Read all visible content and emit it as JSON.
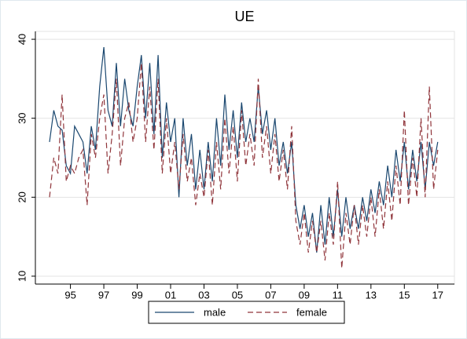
{
  "chart_data": {
    "type": "line",
    "title": "UE",
    "x": [
      1993.75,
      1994,
      1994.25,
      1994.5,
      1994.75,
      1995,
      1995.25,
      1995.5,
      1995.75,
      1996,
      1996.25,
      1996.5,
      1996.75,
      1997,
      1997.25,
      1997.5,
      1997.75,
      1998,
      1998.25,
      1998.5,
      1998.75,
      1999,
      1999.25,
      1999.5,
      1999.75,
      2000,
      2000.25,
      2000.5,
      2000.75,
      2001,
      2001.25,
      2001.5,
      2001.75,
      2002,
      2002.25,
      2002.5,
      2002.75,
      2003,
      2003.25,
      2003.5,
      2003.75,
      2004,
      2004.25,
      2004.5,
      2004.75,
      2005,
      2005.25,
      2005.5,
      2005.75,
      2006,
      2006.25,
      2006.5,
      2006.75,
      2007,
      2007.25,
      2007.5,
      2007.75,
      2008,
      2008.25,
      2008.5,
      2008.75,
      2009,
      2009.25,
      2009.5,
      2009.75,
      2010,
      2010.25,
      2010.5,
      2010.75,
      2011,
      2011.25,
      2011.5,
      2011.75,
      2012,
      2012.25,
      2012.5,
      2012.75,
      2013,
      2013.25,
      2013.5,
      2013.75,
      2014,
      2014.25,
      2014.5,
      2014.75,
      2015,
      2015.25,
      2015.5,
      2015.75,
      2016,
      2016.25,
      2016.5,
      2016.75,
      2017
    ],
    "series": [
      {
        "name": "male",
        "color": "#1a476f",
        "dash": "",
        "values": [
          27,
          31,
          29,
          28.5,
          24,
          23,
          29,
          28,
          27,
          23,
          29,
          26,
          34,
          39,
          31,
          29,
          37,
          29,
          35,
          31,
          29,
          34,
          38,
          30,
          37,
          28,
          38,
          25,
          32,
          27,
          30,
          20,
          30,
          24,
          28,
          21,
          26,
          21,
          27,
          22,
          30,
          24,
          33,
          26,
          31,
          25,
          32,
          27,
          30,
          27,
          34,
          28,
          31,
          26,
          30,
          24,
          27,
          23,
          27,
          19,
          16,
          19,
          15,
          18,
          13,
          19,
          14,
          20,
          15,
          21,
          15,
          20,
          16,
          19,
          16,
          20,
          17,
          21,
          18,
          22,
          19,
          24,
          20,
          26,
          22,
          27,
          21,
          26,
          22,
          27,
          21,
          27,
          24,
          27
        ]
      },
      {
        "name": "female",
        "color": "#90353b",
        "dash": "7 4",
        "values": [
          20,
          25,
          23,
          33,
          22,
          24,
          23,
          25,
          26,
          19,
          28,
          25,
          30,
          33,
          23,
          28,
          35,
          24,
          30,
          32,
          27,
          30,
          37,
          27,
          34,
          26,
          35,
          23,
          30,
          23,
          27,
          21,
          28,
          22,
          25,
          19,
          23,
          20,
          26,
          19,
          27,
          21,
          30,
          23,
          29,
          22,
          31,
          24,
          28,
          24,
          35,
          25,
          29,
          23,
          28,
          22,
          26,
          21,
          29,
          17,
          14,
          18,
          13,
          17,
          13,
          17,
          12,
          18,
          14,
          22,
          11,
          18,
          14,
          19,
          14,
          19,
          15,
          20,
          15,
          21,
          16,
          22,
          17,
          24,
          19,
          31,
          19,
          25,
          20,
          30,
          20,
          34,
          21,
          26
        ]
      }
    ],
    "xlim": [
      1992.9,
      2018
    ],
    "ylim": [
      9,
      41
    ],
    "xticks": [
      {
        "value": 1995,
        "label": "95"
      },
      {
        "value": 1997,
        "label": "97"
      },
      {
        "value": 1999,
        "label": "99"
      },
      {
        "value": 2001,
        "label": "01"
      },
      {
        "value": 2003,
        "label": "03"
      },
      {
        "value": 2005,
        "label": "05"
      },
      {
        "value": 2007,
        "label": "07"
      },
      {
        "value": 2009,
        "label": "09"
      },
      {
        "value": 2011,
        "label": "11"
      },
      {
        "value": 2013,
        "label": "13"
      },
      {
        "value": 2015,
        "label": "15"
      },
      {
        "value": 2017,
        "label": "17"
      }
    ],
    "yticks": [
      10,
      20,
      30,
      40
    ],
    "grid": true
  }
}
